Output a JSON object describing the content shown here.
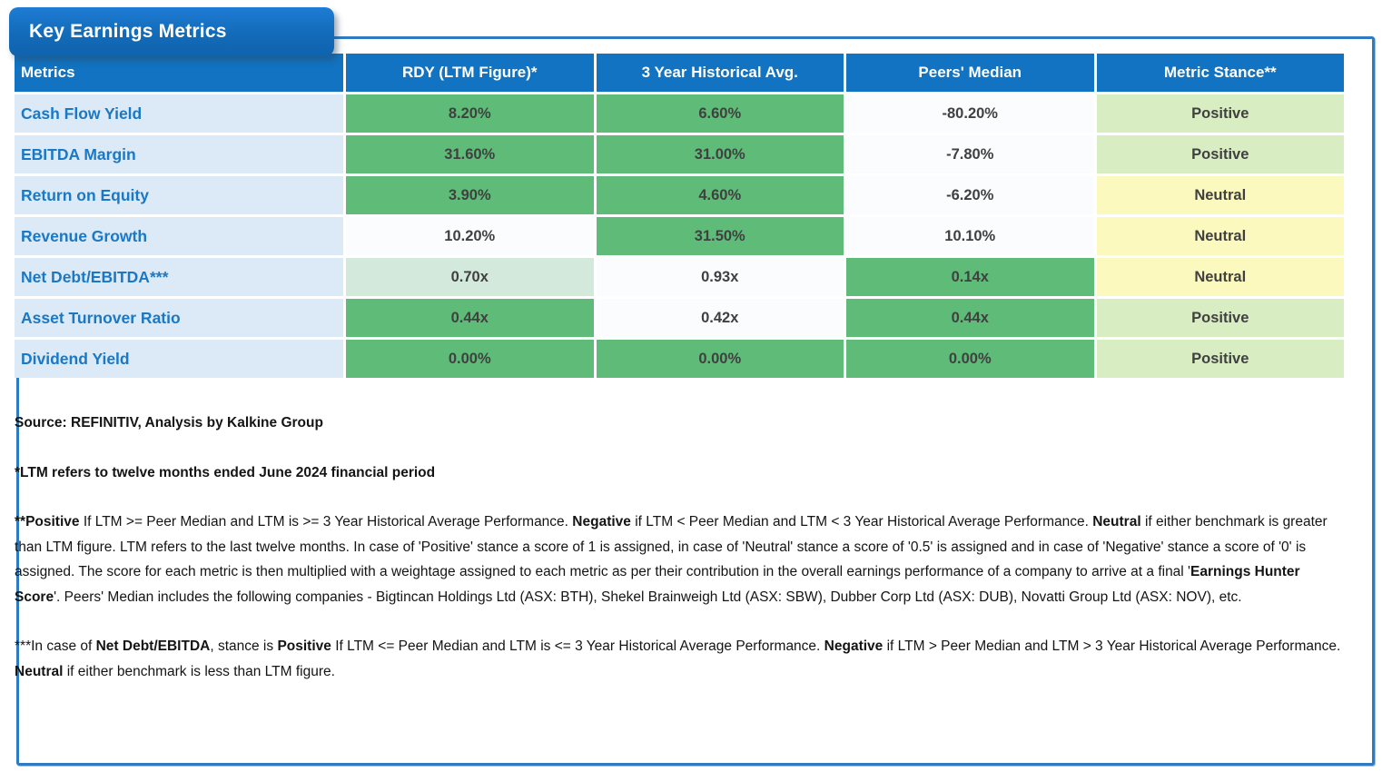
{
  "title": "Key Earnings Metrics",
  "colors": {
    "header_blue": "#1173c1",
    "panel_border_blue": "#2e7bc1",
    "tab_blue": "#136bb8",
    "label_bg_blue": "#dce9f6",
    "label_text_blue": "#1a78c4",
    "cell_green": "#5ebc78",
    "cell_pale_green": "#d3e9db",
    "cell_near_white": "#fbfcfe",
    "stance_light_green": "#d9edc3",
    "stance_yellow": "#fbf9be",
    "value_text": "#404040"
  },
  "table": {
    "columns": [
      "Metrics",
      "RDY (LTM Figure)*",
      "3 Year Historical Avg.",
      "Peers' Median",
      "Metric Stance**"
    ],
    "rows": [
      {
        "metric": "Cash Flow Yield",
        "cells": [
          {
            "v": "8.20%",
            "bg": "green"
          },
          {
            "v": "6.60%",
            "bg": "green"
          },
          {
            "v": "-80.20%",
            "bg": "white"
          }
        ],
        "stance": {
          "v": "Positive",
          "bg": "lightgreen"
        }
      },
      {
        "metric": "EBITDA Margin",
        "cells": [
          {
            "v": "31.60%",
            "bg": "green"
          },
          {
            "v": "31.00%",
            "bg": "green"
          },
          {
            "v": "-7.80%",
            "bg": "white"
          }
        ],
        "stance": {
          "v": "Positive",
          "bg": "lightgreen"
        }
      },
      {
        "metric": "Return on Equity",
        "cells": [
          {
            "v": "3.90%",
            "bg": "green"
          },
          {
            "v": "4.60%",
            "bg": "green"
          },
          {
            "v": "-6.20%",
            "bg": "white"
          }
        ],
        "stance": {
          "v": "Neutral",
          "bg": "yellow"
        }
      },
      {
        "metric": "Revenue Growth",
        "cells": [
          {
            "v": "10.20%",
            "bg": "white"
          },
          {
            "v": "31.50%",
            "bg": "green"
          },
          {
            "v": "10.10%",
            "bg": "white"
          }
        ],
        "stance": {
          "v": "Neutral",
          "bg": "yellow"
        }
      },
      {
        "metric": "Net Debt/EBITDA***",
        "cells": [
          {
            "v": "0.70x",
            "bg": "palegreen"
          },
          {
            "v": "0.93x",
            "bg": "white"
          },
          {
            "v": "0.14x",
            "bg": "green"
          }
        ],
        "stance": {
          "v": "Neutral",
          "bg": "yellow"
        }
      },
      {
        "metric": "Asset Turnover Ratio",
        "cells": [
          {
            "v": "0.44x",
            "bg": "green"
          },
          {
            "v": "0.42x",
            "bg": "white"
          },
          {
            "v": "0.44x",
            "bg": "green"
          }
        ],
        "stance": {
          "v": "Positive",
          "bg": "lightgreen"
        }
      },
      {
        "metric": "Dividend Yield",
        "cells": [
          {
            "v": "0.00%",
            "bg": "green"
          },
          {
            "v": "0.00%",
            "bg": "green"
          },
          {
            "v": "0.00%",
            "bg": "green"
          }
        ],
        "stance": {
          "v": "Positive",
          "bg": "lightgreen"
        }
      }
    ]
  },
  "footnotes": {
    "source": "Source: REFINITIV, Analysis by Kalkine Group",
    "ltm": "*LTM refers to twelve months ended June 2024 financial period",
    "stance_note": [
      {
        "t": "**Positive",
        "b": true
      },
      {
        "t": " If LTM >= Peer Median and LTM is >= 3 Year Historical Average Performance. ",
        "b": false
      },
      {
        "t": "Negative",
        "b": true
      },
      {
        "t": " if LTM < Peer Median and LTM < 3 Year Historical Average Performance. ",
        "b": false
      },
      {
        "t": "Neutral",
        "b": true
      },
      {
        "t": " if either benchmark is greater than LTM figure. LTM refers to the last twelve months. In case of 'Positive' stance a score of 1 is assigned, in case of 'Neutral' stance a score of '0.5' is assigned and in case of 'Negative' stance a score of '0' is assigned. The score for each metric is then multiplied with a weightage assigned to each metric as per their contribution in the overall earnings performance of a company to arrive at a final '",
        "b": false
      },
      {
        "t": "Earnings Hunter Score",
        "b": true
      },
      {
        "t": "'. Peers' Median includes the following companies - Bigtincan Holdings Ltd (ASX: BTH), Shekel Brainweigh Ltd (ASX: SBW), Dubber Corp Ltd (ASX: DUB), Novatti Group Ltd (ASX: NOV), etc.",
        "b": false
      }
    ],
    "netdebt_note": [
      {
        "t": "***In case of ",
        "b": false
      },
      {
        "t": "Net Debt/EBITDA",
        "b": true
      },
      {
        "t": ", stance is ",
        "b": false
      },
      {
        "t": "Positive",
        "b": true
      },
      {
        "t": " If LTM <= Peer Median and LTM is <= 3 Year Historical Average Performance. ",
        "b": false
      },
      {
        "t": "Negative",
        "b": true
      },
      {
        "t": " if LTM > Peer Median and LTM > 3 Year Historical Average Performance. ",
        "b": false
      },
      {
        "t": "Neutral",
        "b": true
      },
      {
        "t": " if either benchmark is less than LTM figure.",
        "b": false
      }
    ]
  }
}
